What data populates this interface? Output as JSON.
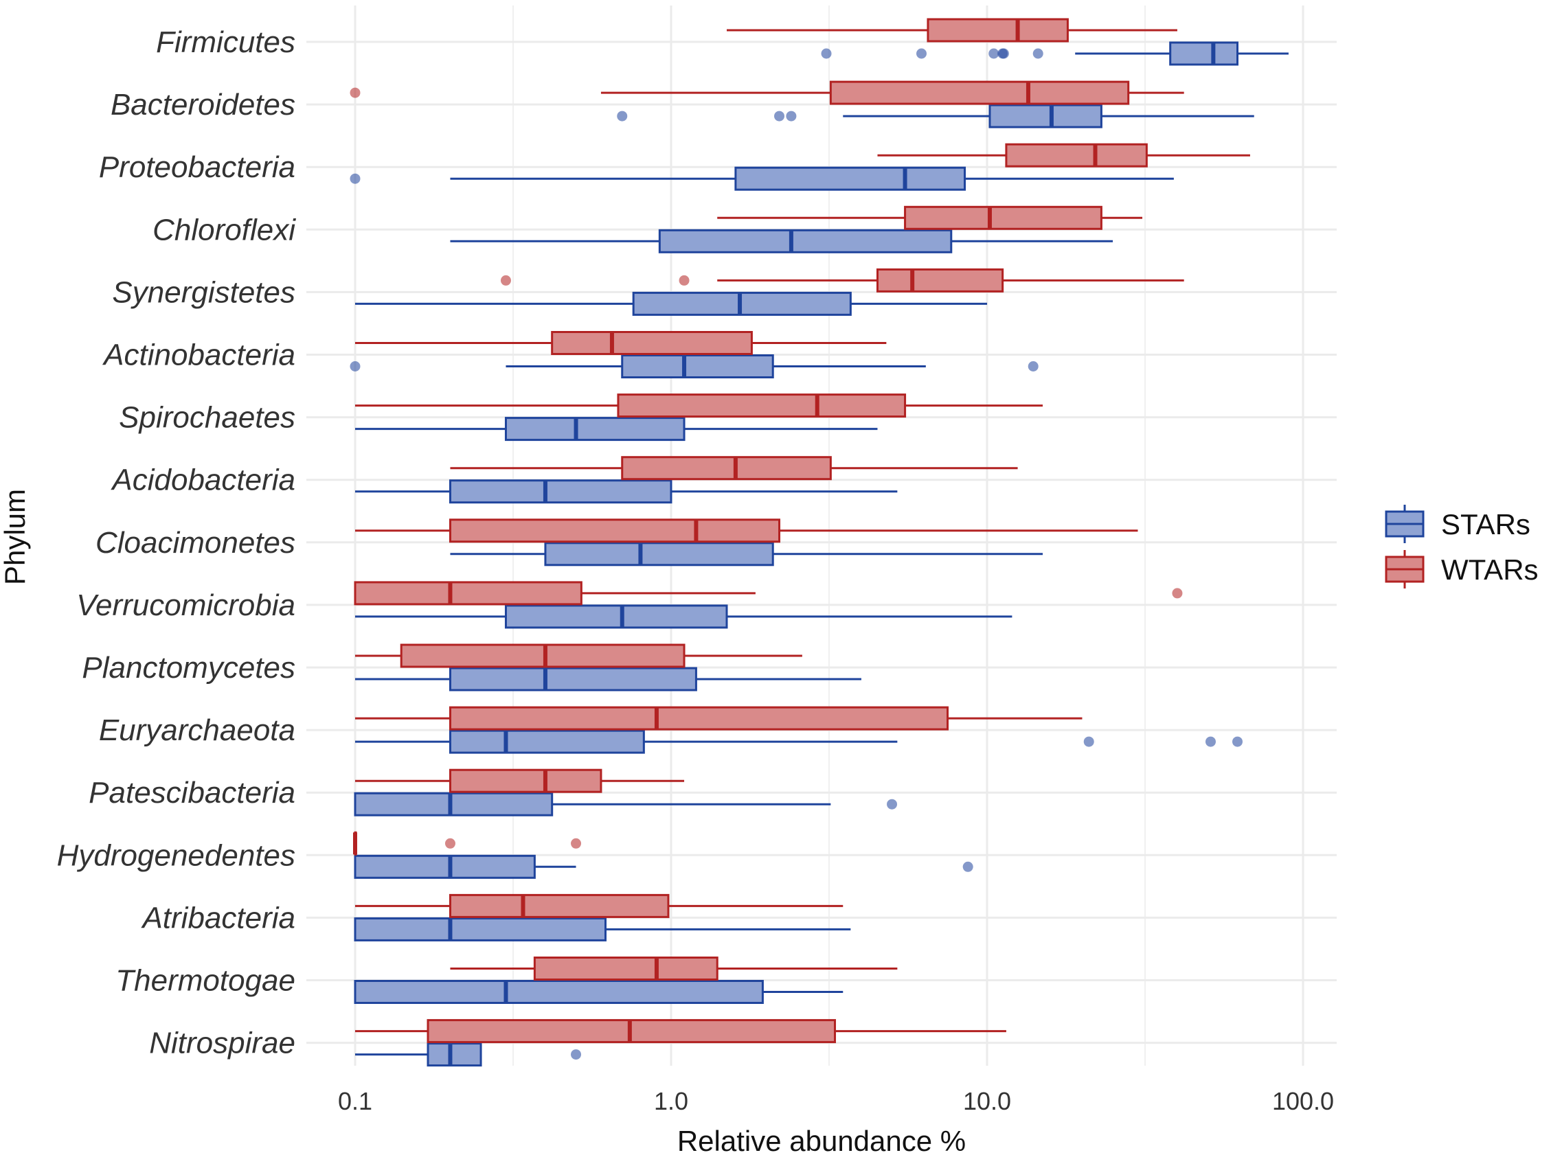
{
  "chart_data": {
    "type": "boxplot",
    "orientation": "horizontal",
    "x_scale": "log10",
    "xlabel": "Relative abundance %",
    "ylabel": "Phylum",
    "xlim": [
      0.08,
      130
    ],
    "x_ticks": [
      0.1,
      1,
      10,
      100
    ],
    "x_tick_labels": [
      "0.1",
      "1.0",
      "10.0",
      "100.0"
    ],
    "grid": true,
    "legend_position": "right",
    "colors": {
      "STARs": {
        "stroke": "#1f449c",
        "fill": "#8fa3d3"
      },
      "WTARs": {
        "stroke": "#b22222",
        "fill": "#d98a8a"
      },
      "grid": "#ebebeb"
    },
    "series": [
      {
        "name": "STARs",
        "key": "stars",
        "offset": "below"
      },
      {
        "name": "WTARs",
        "key": "wtars",
        "offset": "above"
      }
    ],
    "categories": [
      {
        "phylum": "Firmicutes",
        "wtars": {
          "whisker_low": 1.5,
          "q1": 6.5,
          "median": 12.5,
          "q3": 18,
          "whisker_high": 40,
          "outliers": []
        },
        "stars": {
          "whisker_low": 19,
          "q1": 38,
          "median": 52,
          "q3": 62,
          "whisker_high": 90,
          "outliers": [
            3.1,
            6.2,
            10.5,
            11.2,
            11.3,
            14.5
          ]
        }
      },
      {
        "phylum": "Bacteroidetes",
        "wtars": {
          "whisker_low": 0.6,
          "q1": 3.2,
          "median": 13.5,
          "q3": 28,
          "whisker_high": 42,
          "outliers": [
            0.1
          ]
        },
        "stars": {
          "whisker_low": 3.5,
          "q1": 10.2,
          "median": 16,
          "q3": 23,
          "whisker_high": 70,
          "outliers": [
            0.7,
            2.2,
            2.4
          ]
        }
      },
      {
        "phylum": "Proteobacteria",
        "wtars": {
          "whisker_low": 4.5,
          "q1": 11.5,
          "median": 22,
          "q3": 32,
          "whisker_high": 68,
          "outliers": []
        },
        "stars": {
          "whisker_low": 0.2,
          "q1": 1.6,
          "median": 5.5,
          "q3": 8.5,
          "whisker_high": 39,
          "outliers": [
            0.1
          ]
        }
      },
      {
        "phylum": "Chloroflexi",
        "wtars": {
          "whisker_low": 1.4,
          "q1": 5.5,
          "median": 10.2,
          "q3": 23,
          "whisker_high": 31,
          "outliers": []
        },
        "stars": {
          "whisker_low": 0.2,
          "q1": 0.92,
          "median": 2.4,
          "q3": 7.7,
          "whisker_high": 25,
          "outliers": []
        }
      },
      {
        "phylum": "Synergistetes",
        "wtars": {
          "whisker_low": 1.4,
          "q1": 4.5,
          "median": 5.8,
          "q3": 11.2,
          "whisker_high": 42,
          "outliers": [
            0.3,
            1.1
          ]
        },
        "stars": {
          "whisker_low": 0.1,
          "q1": 0.76,
          "median": 1.65,
          "q3": 3.7,
          "whisker_high": 10,
          "outliers": []
        }
      },
      {
        "phylum": "Actinobacteria",
        "wtars": {
          "whisker_low": 0.1,
          "q1": 0.42,
          "median": 0.65,
          "q3": 1.8,
          "whisker_high": 4.8,
          "outliers": []
        },
        "stars": {
          "whisker_low": 0.3,
          "q1": 0.7,
          "median": 1.1,
          "q3": 2.1,
          "whisker_high": 6.4,
          "outliers": [
            0.1,
            14
          ]
        }
      },
      {
        "phylum": "Spirochaetes",
        "wtars": {
          "whisker_low": 0.1,
          "q1": 0.68,
          "median": 2.9,
          "q3": 5.5,
          "whisker_high": 15,
          "outliers": []
        },
        "stars": {
          "whisker_low": 0.1,
          "q1": 0.3,
          "median": 0.5,
          "q3": 1.1,
          "whisker_high": 4.5,
          "outliers": []
        }
      },
      {
        "phylum": "Acidobacteria",
        "wtars": {
          "whisker_low": 0.2,
          "q1": 0.7,
          "median": 1.6,
          "q3": 3.2,
          "whisker_high": 12.5,
          "outliers": []
        },
        "stars": {
          "whisker_low": 0.1,
          "q1": 0.2,
          "median": 0.4,
          "q3": 1.0,
          "whisker_high": 5.2,
          "outliers": []
        }
      },
      {
        "phylum": "Cloacimonetes",
        "wtars": {
          "whisker_low": 0.1,
          "q1": 0.2,
          "median": 1.2,
          "q3": 2.2,
          "whisker_high": 30,
          "outliers": []
        },
        "stars": {
          "whisker_low": 0.2,
          "q1": 0.4,
          "median": 0.8,
          "q3": 2.1,
          "whisker_high": 15,
          "outliers": []
        }
      },
      {
        "phylum": "Verrucomicrobia",
        "wtars": {
          "whisker_low": 0.1,
          "q1": 0.1,
          "median": 0.2,
          "q3": 0.52,
          "whisker_high": 1.85,
          "outliers": [
            40
          ]
        },
        "stars": {
          "whisker_low": 0.1,
          "q1": 0.3,
          "median": 0.7,
          "q3": 1.5,
          "whisker_high": 12,
          "outliers": []
        }
      },
      {
        "phylum": "Planctomycetes",
        "wtars": {
          "whisker_low": 0.1,
          "q1": 0.14,
          "median": 0.4,
          "q3": 1.1,
          "whisker_high": 2.6,
          "outliers": []
        },
        "stars": {
          "whisker_low": 0.1,
          "q1": 0.2,
          "median": 0.4,
          "q3": 1.2,
          "whisker_high": 4.0,
          "outliers": []
        }
      },
      {
        "phylum": "Euryarchaeota",
        "wtars": {
          "whisker_low": 0.1,
          "q1": 0.2,
          "median": 0.9,
          "q3": 7.5,
          "whisker_high": 20,
          "outliers": []
        },
        "stars": {
          "whisker_low": 0.1,
          "q1": 0.2,
          "median": 0.3,
          "q3": 0.82,
          "whisker_high": 5.2,
          "outliers": [
            21,
            51,
            62
          ]
        }
      },
      {
        "phylum": "Patescibacteria",
        "wtars": {
          "whisker_low": 0.1,
          "q1": 0.2,
          "median": 0.4,
          "q3": 0.6,
          "whisker_high": 1.1,
          "outliers": []
        },
        "stars": {
          "whisker_low": 0.1,
          "q1": 0.1,
          "median": 0.2,
          "q3": 0.42,
          "whisker_high": 3.2,
          "outliers": [
            5
          ]
        }
      },
      {
        "phylum": "Hydrogenedentes",
        "wtars": {
          "whisker_low": 0.1,
          "q1": 0.1,
          "median": 0.1,
          "q3": 0.1,
          "whisker_high": 0.1,
          "outliers": [
            0.2,
            0.5
          ]
        },
        "stars": {
          "whisker_low": 0.1,
          "q1": 0.1,
          "median": 0.2,
          "q3": 0.37,
          "whisker_high": 0.5,
          "outliers": [
            8.7
          ]
        }
      },
      {
        "phylum": "Atribacteria",
        "wtars": {
          "whisker_low": 0.1,
          "q1": 0.2,
          "median": 0.34,
          "q3": 0.98,
          "whisker_high": 3.5,
          "outliers": []
        },
        "stars": {
          "whisker_low": 0.1,
          "q1": 0.1,
          "median": 0.2,
          "q3": 0.62,
          "whisker_high": 3.7,
          "outliers": []
        }
      },
      {
        "phylum": "Thermotogae",
        "wtars": {
          "whisker_low": 0.2,
          "q1": 0.37,
          "median": 0.9,
          "q3": 1.4,
          "whisker_high": 5.2,
          "outliers": []
        },
        "stars": {
          "whisker_low": 0.1,
          "q1": 0.1,
          "median": 0.3,
          "q3": 1.95,
          "whisker_high": 3.5,
          "outliers": []
        }
      },
      {
        "phylum": "Nitrospirae",
        "wtars": {
          "whisker_low": 0.1,
          "q1": 0.17,
          "median": 0.74,
          "q3": 3.3,
          "whisker_high": 11.5,
          "outliers": []
        },
        "stars": {
          "whisker_low": 0.1,
          "q1": 0.17,
          "median": 0.2,
          "q3": 0.25,
          "whisker_high": 0.25,
          "outliers": [
            0.5
          ]
        }
      }
    ]
  }
}
